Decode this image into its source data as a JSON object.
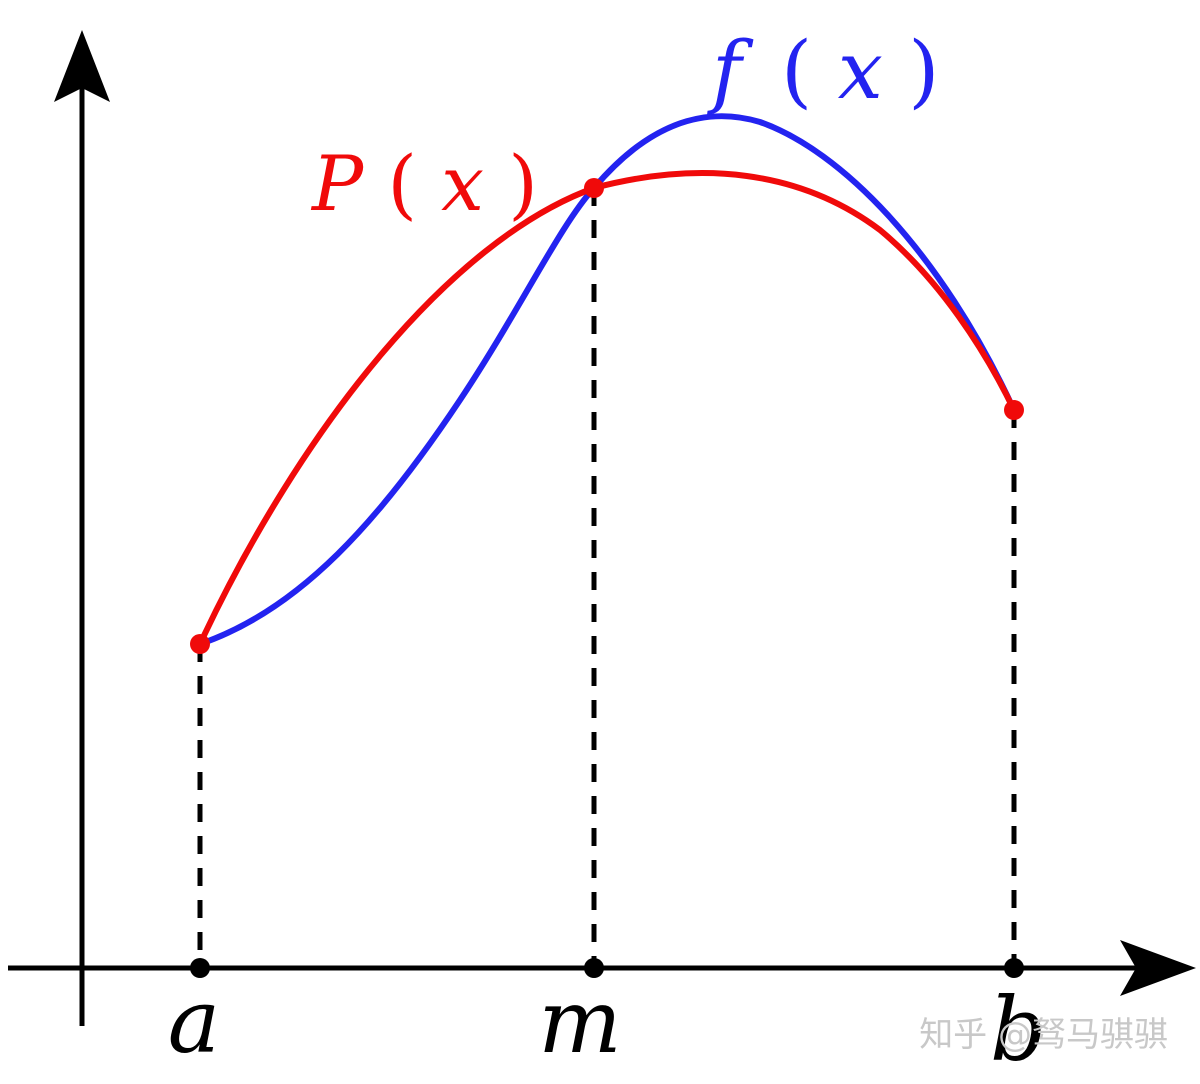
{
  "labels": {
    "f_name": "f",
    "p_name": "P",
    "argument": "x",
    "open_paren": "(",
    "close_paren": ")",
    "x_tick_a": "a",
    "x_tick_m": "m",
    "x_tick_b": "b"
  },
  "watermark": {
    "text": "知乎 @驽马骐骐"
  },
  "colors": {
    "f_curve": "#2323f0",
    "p_curve": "#f00a0a",
    "axes": "#000000",
    "guides": "#000000",
    "watermark": "#c8c8c8"
  }
}
